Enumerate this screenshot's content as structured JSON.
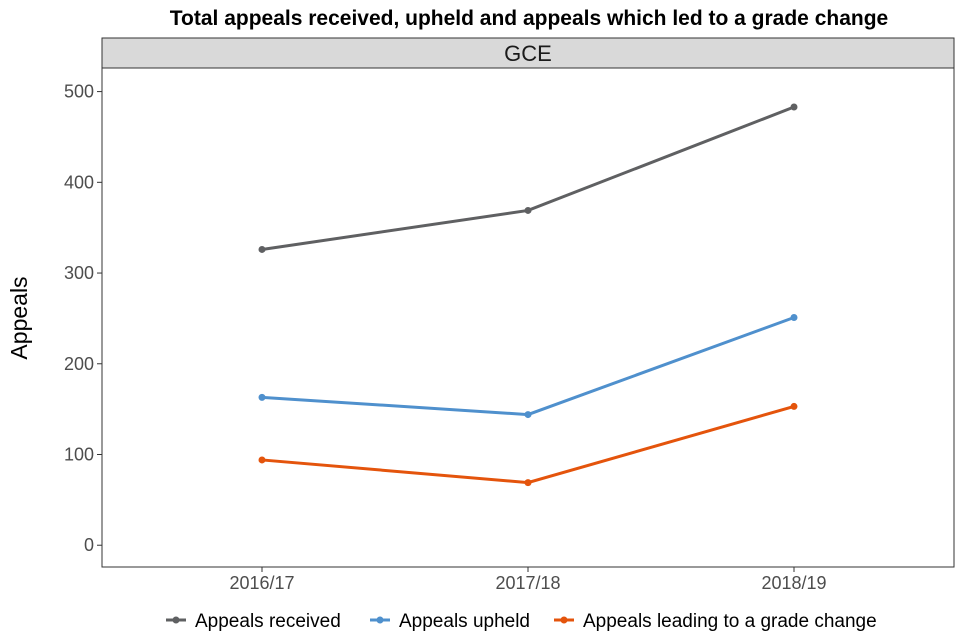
{
  "chart_data": {
    "type": "line",
    "title": "Total appeals received, upheld and appeals which led to a grade change",
    "facet": "GCE",
    "xlabel": "",
    "ylabel": "Appeals",
    "categories": [
      "2016/17",
      "2017/18",
      "2018/19"
    ],
    "yticks": [
      0,
      100,
      200,
      300,
      400,
      500
    ],
    "ylim": [
      -24,
      526
    ],
    "grid": false,
    "legend_position": "bottom",
    "series": [
      {
        "name": "Appeals received",
        "color": "#5f6062",
        "values": [
          326,
          369,
          483
        ]
      },
      {
        "name": "Appeals upheld",
        "color": "#4f90cd",
        "values": [
          163,
          144,
          251
        ]
      },
      {
        "name": "Appeals leading to a grade change",
        "color": "#e4540c",
        "values": [
          94,
          69,
          153
        ]
      }
    ]
  }
}
